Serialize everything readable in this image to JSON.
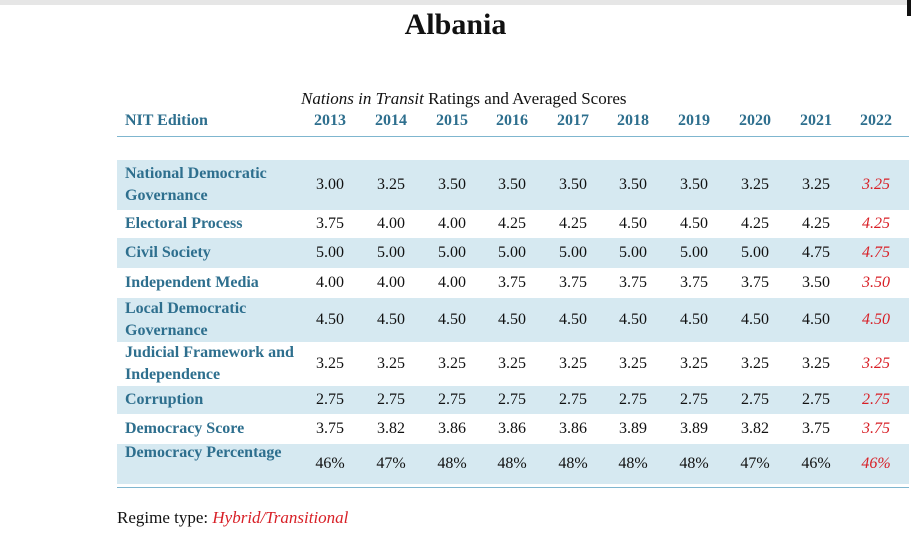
{
  "title": "Albania",
  "caption": {
    "italic": "Nations in Transit",
    "rest": " Ratings and Averaged Scores"
  },
  "header": {
    "edition_label": "NIT Edition",
    "years": [
      "2013",
      "2014",
      "2015",
      "2016",
      "2017",
      "2018",
      "2019",
      "2020",
      "2021",
      "2022"
    ]
  },
  "rows": [
    {
      "label": "National Democratic Governance",
      "values": [
        "3.00",
        "3.25",
        "3.50",
        "3.50",
        "3.50",
        "3.50",
        "3.50",
        "3.25",
        "3.25",
        "3.25"
      ]
    },
    {
      "label": "Electoral Process",
      "values": [
        "3.75",
        "4.00",
        "4.00",
        "4.25",
        "4.25",
        "4.50",
        "4.50",
        "4.25",
        "4.25",
        "4.25"
      ]
    },
    {
      "label": "Civil Society",
      "values": [
        "5.00",
        "5.00",
        "5.00",
        "5.00",
        "5.00",
        "5.00",
        "5.00",
        "5.00",
        "4.75",
        "4.75"
      ]
    },
    {
      "label": "Independent Media",
      "values": [
        "4.00",
        "4.00",
        "4.00",
        "3.75",
        "3.75",
        "3.75",
        "3.75",
        "3.75",
        "3.50",
        "3.50"
      ]
    },
    {
      "label": "Local Democratic Governance",
      "values": [
        "4.50",
        "4.50",
        "4.50",
        "4.50",
        "4.50",
        "4.50",
        "4.50",
        "4.50",
        "4.50",
        "4.50"
      ]
    },
    {
      "label": "Judicial Framework and Independence",
      "values": [
        "3.25",
        "3.25",
        "3.25",
        "3.25",
        "3.25",
        "3.25",
        "3.25",
        "3.25",
        "3.25",
        "3.25"
      ]
    },
    {
      "label": "Corruption",
      "values": [
        "2.75",
        "2.75",
        "2.75",
        "2.75",
        "2.75",
        "2.75",
        "2.75",
        "2.75",
        "2.75",
        "2.75"
      ]
    },
    {
      "label": "Democracy Score",
      "values": [
        "3.75",
        "3.82",
        "3.86",
        "3.86",
        "3.86",
        "3.89",
        "3.89",
        "3.82",
        "3.75",
        "3.75"
      ]
    },
    {
      "label": "Democracy Percentage",
      "values": [
        "46%",
        "47%",
        "48%",
        "48%",
        "48%",
        "48%",
        "48%",
        "47%",
        "46%",
        "46%"
      ]
    }
  ],
  "regime": {
    "label": "Regime type: ",
    "value": "Hybrid/Transitional"
  },
  "colors": {
    "accent": "#2e6f8e",
    "shade": "#d6e9f1",
    "highlight": "#d81f26"
  }
}
